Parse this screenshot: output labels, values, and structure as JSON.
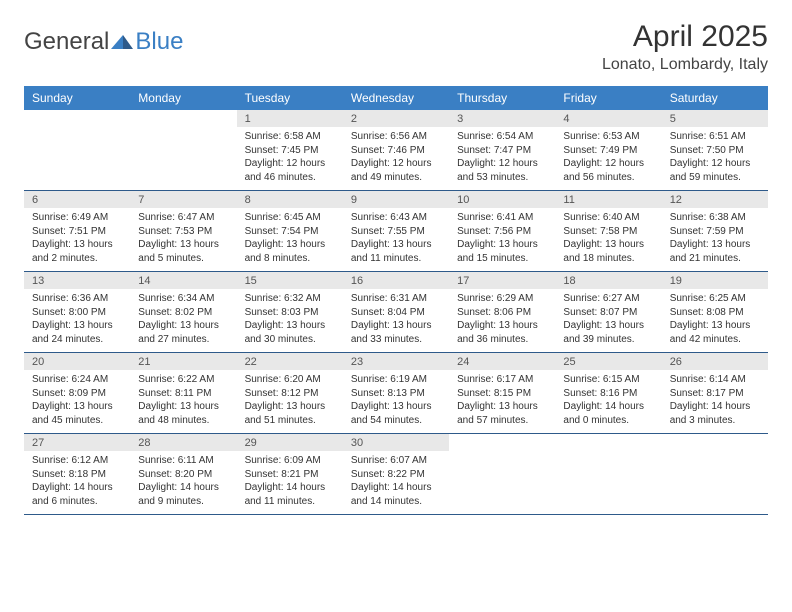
{
  "logo": {
    "text1": "General",
    "text2": "Blue"
  },
  "title": "April 2025",
  "location": "Lonato, Lombardy, Italy",
  "colors": {
    "header_bg": "#3a7fc4",
    "header_text": "#ffffff",
    "daynum_bg": "#e8e8e8",
    "border": "#2e5a8a",
    "text": "#333333"
  },
  "font": {
    "title_size": 30,
    "location_size": 16,
    "dayhead_size": 12,
    "daynum_size": 11,
    "body_size": 10
  },
  "day_headers": [
    "Sunday",
    "Monday",
    "Tuesday",
    "Wednesday",
    "Thursday",
    "Friday",
    "Saturday"
  ],
  "weeks": [
    [
      {
        "n": "",
        "empty": true
      },
      {
        "n": "",
        "empty": true
      },
      {
        "n": "1",
        "sr": "Sunrise: 6:58 AM",
        "ss": "Sunset: 7:45 PM",
        "dl1": "Daylight: 12 hours",
        "dl2": "and 46 minutes."
      },
      {
        "n": "2",
        "sr": "Sunrise: 6:56 AM",
        "ss": "Sunset: 7:46 PM",
        "dl1": "Daylight: 12 hours",
        "dl2": "and 49 minutes."
      },
      {
        "n": "3",
        "sr": "Sunrise: 6:54 AM",
        "ss": "Sunset: 7:47 PM",
        "dl1": "Daylight: 12 hours",
        "dl2": "and 53 minutes."
      },
      {
        "n": "4",
        "sr": "Sunrise: 6:53 AM",
        "ss": "Sunset: 7:49 PM",
        "dl1": "Daylight: 12 hours",
        "dl2": "and 56 minutes."
      },
      {
        "n": "5",
        "sr": "Sunrise: 6:51 AM",
        "ss": "Sunset: 7:50 PM",
        "dl1": "Daylight: 12 hours",
        "dl2": "and 59 minutes."
      }
    ],
    [
      {
        "n": "6",
        "sr": "Sunrise: 6:49 AM",
        "ss": "Sunset: 7:51 PM",
        "dl1": "Daylight: 13 hours",
        "dl2": "and 2 minutes."
      },
      {
        "n": "7",
        "sr": "Sunrise: 6:47 AM",
        "ss": "Sunset: 7:53 PM",
        "dl1": "Daylight: 13 hours",
        "dl2": "and 5 minutes."
      },
      {
        "n": "8",
        "sr": "Sunrise: 6:45 AM",
        "ss": "Sunset: 7:54 PM",
        "dl1": "Daylight: 13 hours",
        "dl2": "and 8 minutes."
      },
      {
        "n": "9",
        "sr": "Sunrise: 6:43 AM",
        "ss": "Sunset: 7:55 PM",
        "dl1": "Daylight: 13 hours",
        "dl2": "and 11 minutes."
      },
      {
        "n": "10",
        "sr": "Sunrise: 6:41 AM",
        "ss": "Sunset: 7:56 PM",
        "dl1": "Daylight: 13 hours",
        "dl2": "and 15 minutes."
      },
      {
        "n": "11",
        "sr": "Sunrise: 6:40 AM",
        "ss": "Sunset: 7:58 PM",
        "dl1": "Daylight: 13 hours",
        "dl2": "and 18 minutes."
      },
      {
        "n": "12",
        "sr": "Sunrise: 6:38 AM",
        "ss": "Sunset: 7:59 PM",
        "dl1": "Daylight: 13 hours",
        "dl2": "and 21 minutes."
      }
    ],
    [
      {
        "n": "13",
        "sr": "Sunrise: 6:36 AM",
        "ss": "Sunset: 8:00 PM",
        "dl1": "Daylight: 13 hours",
        "dl2": "and 24 minutes."
      },
      {
        "n": "14",
        "sr": "Sunrise: 6:34 AM",
        "ss": "Sunset: 8:02 PM",
        "dl1": "Daylight: 13 hours",
        "dl2": "and 27 minutes."
      },
      {
        "n": "15",
        "sr": "Sunrise: 6:32 AM",
        "ss": "Sunset: 8:03 PM",
        "dl1": "Daylight: 13 hours",
        "dl2": "and 30 minutes."
      },
      {
        "n": "16",
        "sr": "Sunrise: 6:31 AM",
        "ss": "Sunset: 8:04 PM",
        "dl1": "Daylight: 13 hours",
        "dl2": "and 33 minutes."
      },
      {
        "n": "17",
        "sr": "Sunrise: 6:29 AM",
        "ss": "Sunset: 8:06 PM",
        "dl1": "Daylight: 13 hours",
        "dl2": "and 36 minutes."
      },
      {
        "n": "18",
        "sr": "Sunrise: 6:27 AM",
        "ss": "Sunset: 8:07 PM",
        "dl1": "Daylight: 13 hours",
        "dl2": "and 39 minutes."
      },
      {
        "n": "19",
        "sr": "Sunrise: 6:25 AM",
        "ss": "Sunset: 8:08 PM",
        "dl1": "Daylight: 13 hours",
        "dl2": "and 42 minutes."
      }
    ],
    [
      {
        "n": "20",
        "sr": "Sunrise: 6:24 AM",
        "ss": "Sunset: 8:09 PM",
        "dl1": "Daylight: 13 hours",
        "dl2": "and 45 minutes."
      },
      {
        "n": "21",
        "sr": "Sunrise: 6:22 AM",
        "ss": "Sunset: 8:11 PM",
        "dl1": "Daylight: 13 hours",
        "dl2": "and 48 minutes."
      },
      {
        "n": "22",
        "sr": "Sunrise: 6:20 AM",
        "ss": "Sunset: 8:12 PM",
        "dl1": "Daylight: 13 hours",
        "dl2": "and 51 minutes."
      },
      {
        "n": "23",
        "sr": "Sunrise: 6:19 AM",
        "ss": "Sunset: 8:13 PM",
        "dl1": "Daylight: 13 hours",
        "dl2": "and 54 minutes."
      },
      {
        "n": "24",
        "sr": "Sunrise: 6:17 AM",
        "ss": "Sunset: 8:15 PM",
        "dl1": "Daylight: 13 hours",
        "dl2": "and 57 minutes."
      },
      {
        "n": "25",
        "sr": "Sunrise: 6:15 AM",
        "ss": "Sunset: 8:16 PM",
        "dl1": "Daylight: 14 hours",
        "dl2": "and 0 minutes."
      },
      {
        "n": "26",
        "sr": "Sunrise: 6:14 AM",
        "ss": "Sunset: 8:17 PM",
        "dl1": "Daylight: 14 hours",
        "dl2": "and 3 minutes."
      }
    ],
    [
      {
        "n": "27",
        "sr": "Sunrise: 6:12 AM",
        "ss": "Sunset: 8:18 PM",
        "dl1": "Daylight: 14 hours",
        "dl2": "and 6 minutes."
      },
      {
        "n": "28",
        "sr": "Sunrise: 6:11 AM",
        "ss": "Sunset: 8:20 PM",
        "dl1": "Daylight: 14 hours",
        "dl2": "and 9 minutes."
      },
      {
        "n": "29",
        "sr": "Sunrise: 6:09 AM",
        "ss": "Sunset: 8:21 PM",
        "dl1": "Daylight: 14 hours",
        "dl2": "and 11 minutes."
      },
      {
        "n": "30",
        "sr": "Sunrise: 6:07 AM",
        "ss": "Sunset: 8:22 PM",
        "dl1": "Daylight: 14 hours",
        "dl2": "and 14 minutes."
      },
      {
        "n": "",
        "empty": true
      },
      {
        "n": "",
        "empty": true
      },
      {
        "n": "",
        "empty": true
      }
    ]
  ]
}
